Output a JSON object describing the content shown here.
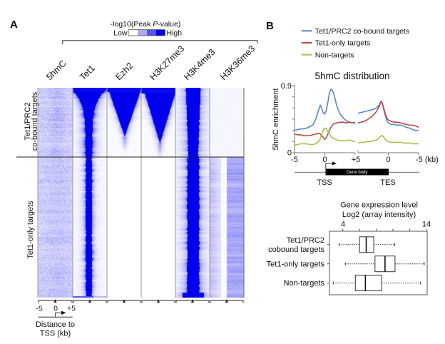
{
  "figure": {
    "panel_a_label": "A",
    "panel_b_label": "B"
  },
  "chart_data": [
    {
      "type": "heatmap",
      "colorbar": {
        "title_prefix": "-log10(Peak ",
        "title_italic": "P",
        "title_suffix": "-value)",
        "low_label": "Low",
        "high_label": "High",
        "colors": [
          "#ffffff",
          "#aaaaf2",
          "#5555ee",
          "#0000e6"
        ]
      },
      "columns": [
        "5hmC",
        "Tet1",
        "Ezh2",
        "H3K27me3",
        "H3K4me3",
        "H3K36me3"
      ],
      "row_groups": [
        {
          "label_lines": [
            "Tet1/PRC2",
            "co-bound targets"
          ]
        },
        {
          "label_lines": [
            "Tet1-only targets"
          ]
        }
      ],
      "x_ticks": [
        "-5",
        "0",
        "+5"
      ],
      "xlabel_lines": [
        "Distance to",
        "TSS (kb)"
      ]
    },
    {
      "type": "line",
      "title": "5hmC distribution",
      "ylabel": "5hmC enrichment",
      "ylim": [
        0,
        0.9
      ],
      "y_tick_labels": [
        "0",
        "0.9"
      ],
      "x_tick_labels": [
        "-5",
        "0",
        "+5",
        "0",
        "-5 (kb)"
      ],
      "panels": [
        {
          "name": "TSS",
          "xlim": [
            -5,
            5
          ],
          "x": [
            -5,
            -4.5,
            -4,
            -3.5,
            -3,
            -2.5,
            -2,
            -1.5,
            -1,
            -0.75,
            -0.5,
            -0.25,
            0,
            0.25,
            0.5,
            0.75,
            1,
            1.25,
            1.5,
            2,
            2.5,
            3,
            3.5,
            4,
            4.5,
            5
          ]
        },
        {
          "name": "TES",
          "xlim": [
            5,
            -5
          ],
          "x": [
            5,
            4.5,
            4,
            3.5,
            3,
            2.5,
            2,
            1.5,
            1.2,
            1,
            0.75,
            0.5,
            0.25,
            0,
            -0.5,
            -1,
            -1.5,
            -2,
            -2.5,
            -3,
            -3.5,
            -4,
            -4.5,
            -5
          ]
        }
      ],
      "series": [
        {
          "name": "Tet1/PRC2 co-bound targets",
          "color": "#5a85c8",
          "tss": [
            0.3,
            0.31,
            0.32,
            0.32,
            0.33,
            0.35,
            0.37,
            0.45,
            0.58,
            0.64,
            0.59,
            0.53,
            0.52,
            0.57,
            0.68,
            0.8,
            0.85,
            0.84,
            0.78,
            0.62,
            0.52,
            0.47,
            0.43,
            0.41,
            0.4,
            0.41
          ],
          "tes": [
            0.53,
            0.54,
            0.55,
            0.56,
            0.57,
            0.58,
            0.6,
            0.64,
            0.69,
            0.66,
            0.58,
            0.5,
            0.43,
            0.4,
            0.38,
            0.38,
            0.37,
            0.37,
            0.36,
            0.34,
            0.33,
            0.31,
            0.3,
            0.3
          ]
        },
        {
          "name": "Tet1-only targets",
          "color": "#b84a4a",
          "tss": [
            0.25,
            0.24,
            0.24,
            0.23,
            0.23,
            0.23,
            0.24,
            0.25,
            0.26,
            0.25,
            0.23,
            0.2,
            0.18,
            0.2,
            0.25,
            0.3,
            0.34,
            0.37,
            0.39,
            0.4,
            0.41,
            0.41,
            0.4,
            0.41,
            0.4,
            0.4
          ],
          "tes": [
            0.4,
            0.41,
            0.42,
            0.44,
            0.47,
            0.5,
            0.55,
            0.62,
            0.69,
            0.67,
            0.6,
            0.52,
            0.47,
            0.44,
            0.42,
            0.41,
            0.41,
            0.4,
            0.39,
            0.38,
            0.37,
            0.37,
            0.36,
            0.34
          ]
        },
        {
          "name": "Non-targets",
          "color": "#a4c04e",
          "tss": [
            0.1,
            0.11,
            0.12,
            0.12,
            0.12,
            0.11,
            0.11,
            0.12,
            0.15,
            0.19,
            0.25,
            0.3,
            0.33,
            0.32,
            0.28,
            0.25,
            0.22,
            0.2,
            0.19,
            0.17,
            0.16,
            0.16,
            0.16,
            0.17,
            0.16,
            0.15
          ],
          "tes": [
            0.13,
            0.14,
            0.14,
            0.15,
            0.15,
            0.16,
            0.17,
            0.2,
            0.23,
            0.23,
            0.21,
            0.18,
            0.16,
            0.15,
            0.14,
            0.14,
            0.14,
            0.14,
            0.13,
            0.13,
            0.13,
            0.12,
            0.12,
            0.12
          ]
        }
      ],
      "gene_diagram": {
        "body_label": "Gene body",
        "tss_label": "TSS",
        "tes_label": "TES"
      }
    },
    {
      "type": "box",
      "title_lines": [
        "Gene expression level",
        "Log2 (array intensity)"
      ],
      "xlim": [
        2.4,
        14.1
      ],
      "ticks": [
        4,
        6,
        8,
        10,
        12,
        14
      ],
      "tick_labels": {
        "4": "4",
        "14": "14"
      },
      "categories": [
        {
          "label_lines": [
            "Tet1/PRC2",
            "cobound targets"
          ],
          "stats": {
            "whisker_low": 3.55,
            "q1": 6.0,
            "median": 6.8,
            "q3": 7.7,
            "whisker_high": 10.2
          }
        },
        {
          "label_lines": [
            "Tet1-only targets"
          ],
          "stats": {
            "whisker_low": 4.3,
            "q1": 7.85,
            "median": 9.05,
            "q3": 10.25,
            "whisker_high": 13.75
          }
        },
        {
          "label_lines": [
            "Non-targets"
          ],
          "stats": {
            "whisker_low": 2.85,
            "q1": 5.5,
            "median": 6.7,
            "q3": 8.65,
            "whisker_high": 13.3
          }
        }
      ]
    }
  ]
}
